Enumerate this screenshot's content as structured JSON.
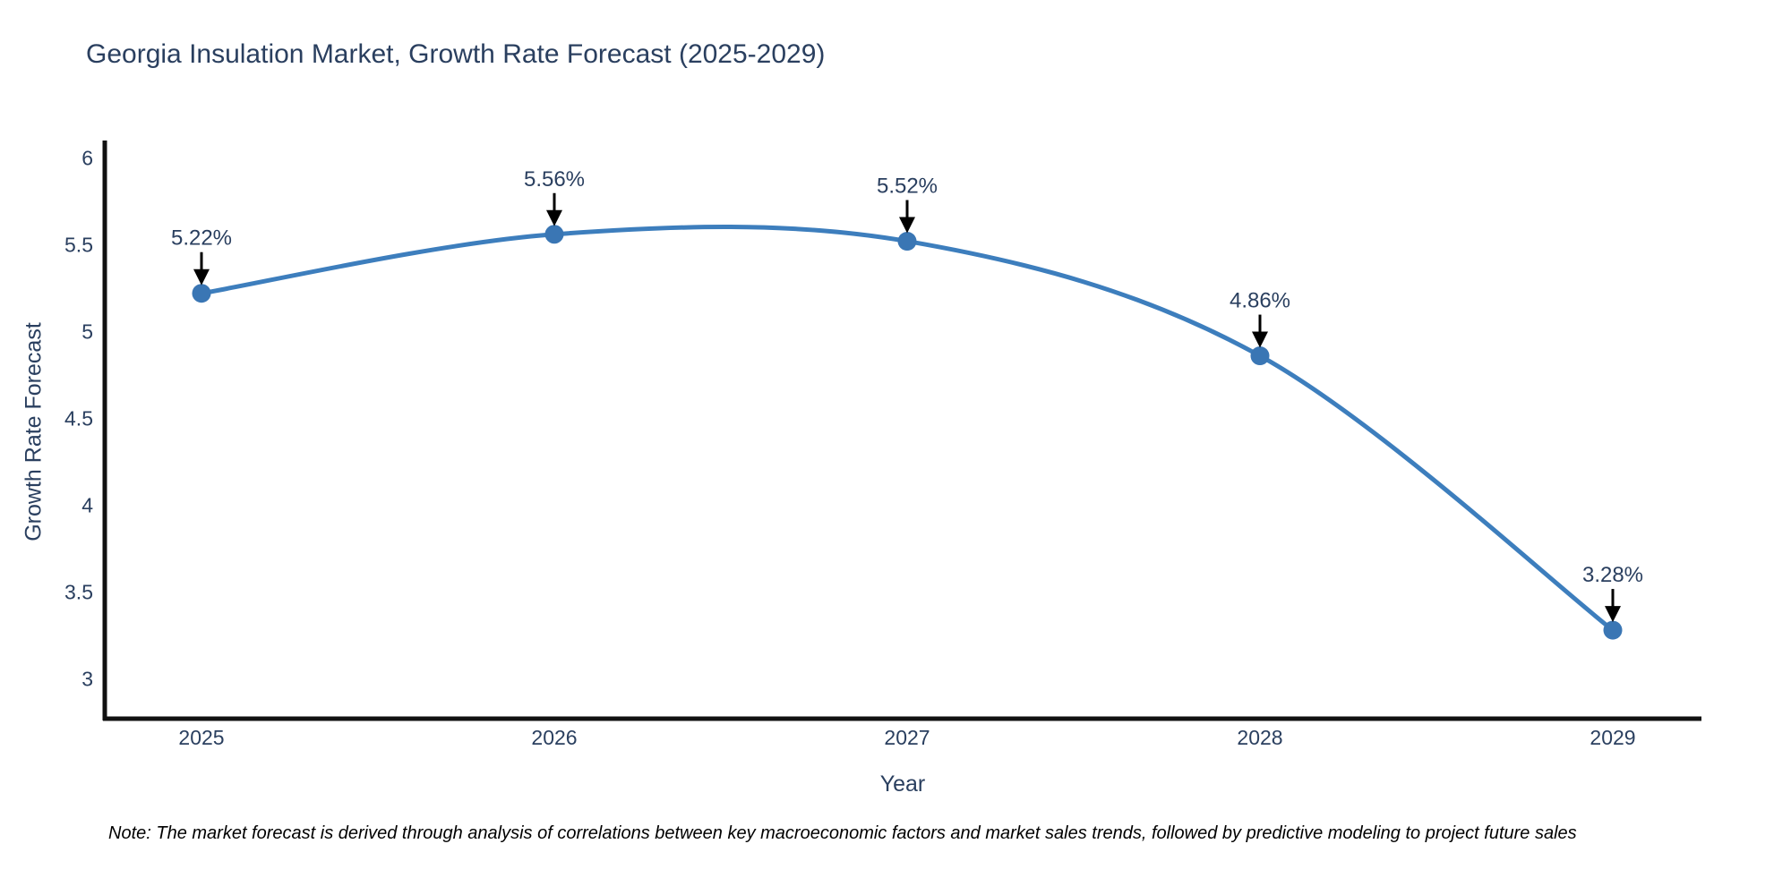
{
  "chart_data": {
    "type": "line",
    "title": "Georgia Insulation Market, Growth Rate Forecast (2025-2029)",
    "xlabel": "Year",
    "ylabel": "Growth Rate Forecast",
    "x": [
      2025,
      2026,
      2027,
      2028,
      2029
    ],
    "series": [
      {
        "name": "Growth Rate Forecast",
        "values": [
          5.22,
          5.56,
          5.52,
          4.86,
          3.28
        ]
      }
    ],
    "point_labels": [
      "5.22%",
      "5.56%",
      "5.52%",
      "4.86%",
      "3.28%"
    ],
    "yticks": [
      3,
      3.5,
      4,
      4.5,
      5,
      5.5,
      6
    ],
    "ylim": [
      2.77,
      6.1
    ],
    "line_shape": "spline",
    "grid": false,
    "legend": "none",
    "colors": {
      "line": "#3d7ebd",
      "marker": "#3a76b4",
      "arrow": "#000000",
      "text": "#2a3f5f",
      "axis": "#111111",
      "note": "#000000",
      "background": "#ffffff"
    },
    "note": "Note: The market forecast is derived through analysis of correlations between key macroeconomic factors and market sales trends, followed by predictive modeling to project future sales"
  }
}
